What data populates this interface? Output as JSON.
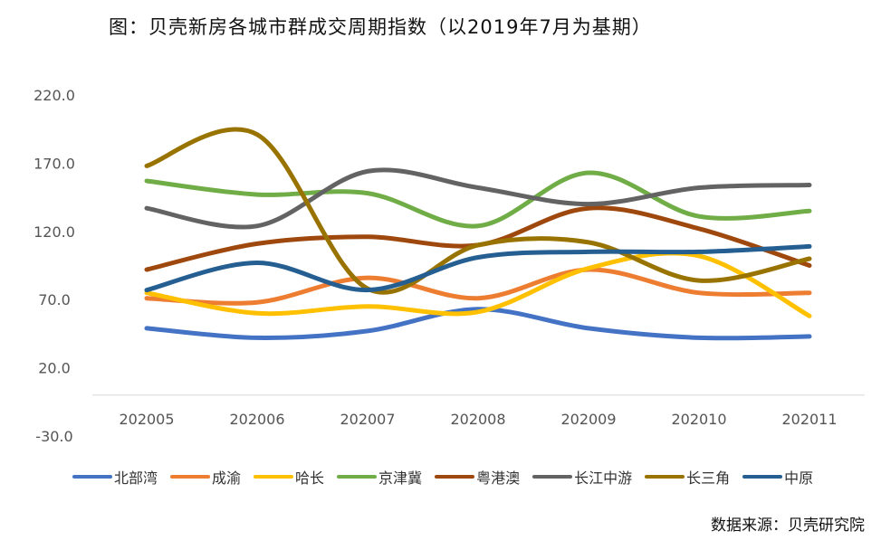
{
  "chart_data": {
    "type": "line",
    "title": "图：贝壳新房各城市群成交周期指数（以2019年7月为基期）",
    "source": "数据来源：贝壳研究院",
    "xlabel": "",
    "ylabel": "",
    "categories": [
      "202005",
      "202006",
      "202007",
      "202008",
      "202009",
      "202010",
      "202011"
    ],
    "ylim": [
      -30,
      220
    ],
    "yticks": [
      {
        "value": 220,
        "label": "220.0"
      },
      {
        "value": 170,
        "label": "170.0"
      },
      {
        "value": 120,
        "label": "120.0"
      },
      {
        "value": 70,
        "label": "70.0"
      },
      {
        "value": 20,
        "label": "20.0"
      },
      {
        "value": -30,
        "label": "-30.0"
      }
    ],
    "axis_baseline": 0,
    "grid": false,
    "legend_position": "bottom",
    "series": [
      {
        "name": "北部湾",
        "color": "#4472C4",
        "values": [
          49,
          42,
          47,
          63,
          49,
          42,
          43
        ]
      },
      {
        "name": "成渝",
        "color": "#ED7D31",
        "values": [
          71,
          68,
          86,
          71,
          92,
          75,
          75
        ]
      },
      {
        "name": "哈长",
        "color": "#FFC000",
        "values": [
          75,
          60,
          65,
          61,
          93,
          102,
          58
        ]
      },
      {
        "name": "京津冀",
        "color": "#70AD47",
        "values": [
          157,
          147,
          148,
          124,
          163,
          131,
          135
        ]
      },
      {
        "name": "粤港澳",
        "color": "#9E480E",
        "values": [
          92,
          111,
          116,
          110,
          137,
          122,
          95
        ]
      },
      {
        "name": "长江中游",
        "color": "#636363",
        "values": [
          137,
          124,
          164,
          152,
          140,
          152,
          154
        ]
      },
      {
        "name": "长三角",
        "color": "#997300",
        "values": [
          168,
          191,
          78,
          110,
          112,
          84,
          100
        ]
      },
      {
        "name": "中原",
        "color": "#255E91",
        "values": [
          77,
          97,
          77,
          101,
          105,
          105,
          109
        ]
      }
    ]
  }
}
